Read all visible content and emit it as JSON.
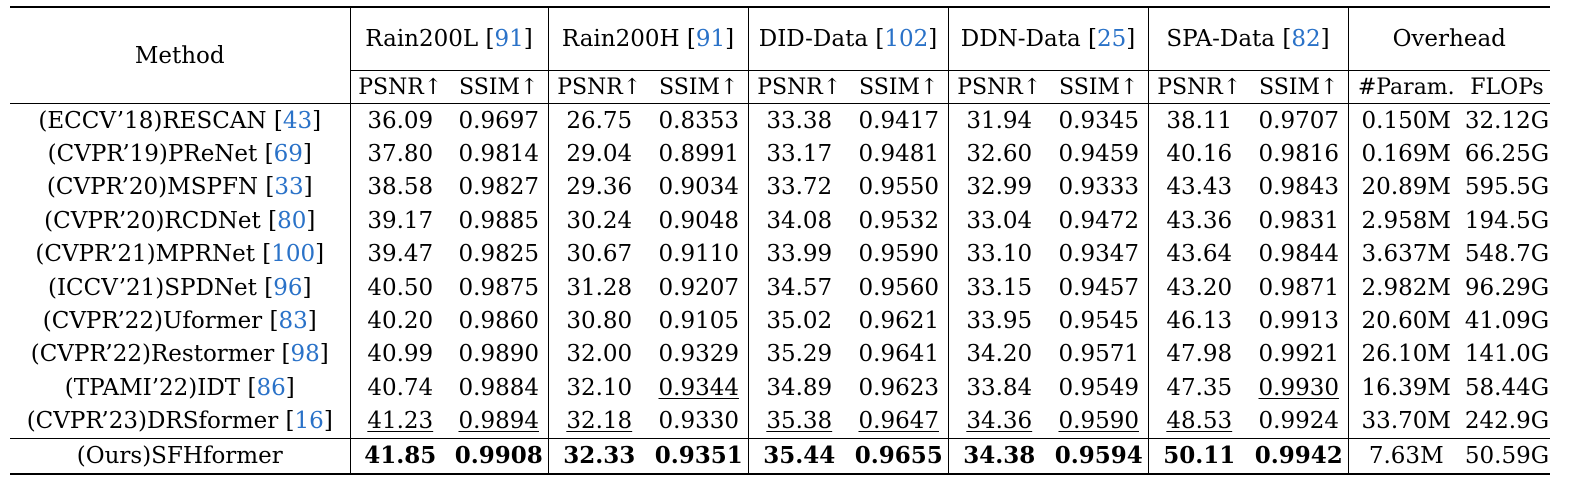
{
  "table": {
    "method_header": "Method",
    "overhead_header": "Overhead",
    "datasets": [
      {
        "name": "Rain200L",
        "cite": "91"
      },
      {
        "name": "Rain200H",
        "cite": "91"
      },
      {
        "name": "DID-Data",
        "cite": "102"
      },
      {
        "name": "DDN-Data",
        "cite": "25"
      },
      {
        "name": "SPA-Data",
        "cite": "82"
      }
    ],
    "metric_labels": {
      "psnr": "PSNR↑",
      "ssim": "SSIM↑",
      "param": "#Param.",
      "flops": "FLOPs"
    },
    "rows": [
      {
        "method": "(ECCV’18)RESCAN",
        "cite": "43",
        "vals": [
          "36.09",
          "0.9697",
          "26.75",
          "0.8353",
          "33.38",
          "0.9417",
          "31.94",
          "0.9345",
          "38.11",
          "0.9707"
        ],
        "param": "0.150M",
        "flops": "32.12G"
      },
      {
        "method": "(CVPR’19)PReNet",
        "cite": "69",
        "vals": [
          "37.80",
          "0.9814",
          "29.04",
          "0.8991",
          "33.17",
          "0.9481",
          "32.60",
          "0.9459",
          "40.16",
          "0.9816"
        ],
        "param": "0.169M",
        "flops": "66.25G"
      },
      {
        "method": "(CVPR’20)MSPFN",
        "cite": "33",
        "vals": [
          "38.58",
          "0.9827",
          "29.36",
          "0.9034",
          "33.72",
          "0.9550",
          "32.99",
          "0.9333",
          "43.43",
          "0.9843"
        ],
        "param": "20.89M",
        "flops": "595.5G"
      },
      {
        "method": "(CVPR’20)RCDNet",
        "cite": "80",
        "vals": [
          "39.17",
          "0.9885",
          "30.24",
          "0.9048",
          "34.08",
          "0.9532",
          "33.04",
          "0.9472",
          "43.36",
          "0.9831"
        ],
        "param": "2.958M",
        "flops": "194.5G"
      },
      {
        "method": "(CVPR’21)MPRNet",
        "cite": "100",
        "vals": [
          "39.47",
          "0.9825",
          "30.67",
          "0.9110",
          "33.99",
          "0.9590",
          "33.10",
          "0.9347",
          "43.64",
          "0.9844"
        ],
        "param": "3.637M",
        "flops": "548.7G"
      },
      {
        "method": "(ICCV’21)SPDNet",
        "cite": "96",
        "vals": [
          "40.50",
          "0.9875",
          "31.28",
          "0.9207",
          "34.57",
          "0.9560",
          "33.15",
          "0.9457",
          "43.20",
          "0.9871"
        ],
        "param": "2.982M",
        "flops": "96.29G"
      },
      {
        "method": "(CVPR’22)Uformer",
        "cite": "83",
        "vals": [
          "40.20",
          "0.9860",
          "30.80",
          "0.9105",
          "35.02",
          "0.9621",
          "33.95",
          "0.9545",
          "46.13",
          "0.9913"
        ],
        "param": "20.60M",
        "flops": "41.09G"
      },
      {
        "method": "(CVPR’22)Restormer",
        "cite": "98",
        "vals": [
          "40.99",
          "0.9890",
          "32.00",
          "0.9329",
          "35.29",
          "0.9641",
          "34.20",
          "0.9571",
          "47.98",
          "0.9921"
        ],
        "param": "26.10M",
        "flops": "141.0G"
      },
      {
        "method": "(TPAMI’22)IDT",
        "cite": "86",
        "vals": [
          "40.74",
          "0.9884",
          "32.10",
          "0.9344",
          "34.89",
          "0.9623",
          "33.84",
          "0.9549",
          "47.35",
          "0.9930"
        ],
        "param": "16.39M",
        "flops": "58.44G"
      },
      {
        "method": "(CVPR’23)DRSformer",
        "cite": "16",
        "vals": [
          "41.23",
          "0.9894",
          "32.18",
          "0.9330",
          "35.38",
          "0.9647",
          "34.36",
          "0.9590",
          "48.53",
          "0.9924"
        ],
        "param": "33.70M",
        "flops": "242.9G"
      }
    ],
    "ours": {
      "method": "(Ours)SFHformer",
      "vals": [
        "41.85",
        "0.9908",
        "32.33",
        "0.9351",
        "35.44",
        "0.9655",
        "34.38",
        "0.9594",
        "50.11",
        "0.9942"
      ],
      "param": "7.63M",
      "flops": "50.59G"
    }
  }
}
